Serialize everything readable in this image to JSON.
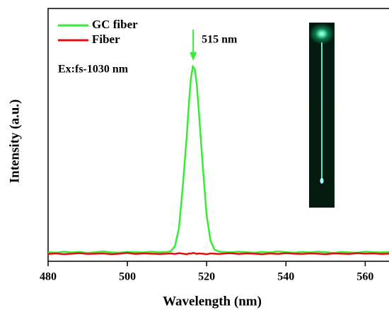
{
  "chart_data": {
    "type": "line",
    "x_label": "Wavelength (nm)",
    "y_label": "Intensity (a.u.)",
    "annotations": [
      "515 nm",
      "Ex:fs-1030 nm"
    ],
    "xlim": [
      480,
      566
    ],
    "xticks": [
      480,
      500,
      520,
      540,
      560
    ],
    "ylim": [
      0,
      100
    ],
    "legend": "top-left",
    "x": [
      480,
      482,
      484,
      486,
      488,
      490,
      492,
      494,
      496,
      498,
      500,
      502,
      504,
      506,
      508,
      510,
      511,
      512,
      513,
      514,
      515,
      515.5,
      516,
      516.5,
      517,
      517.5,
      518,
      519,
      520,
      521,
      522,
      523,
      524,
      526,
      528,
      530,
      532,
      534,
      536,
      538,
      540,
      542,
      544,
      546,
      548,
      550,
      552,
      554,
      556,
      558,
      560,
      562,
      564,
      566
    ],
    "series": [
      {
        "name": "GC fiber",
        "color": "#33ee33",
        "values": [
          3.6,
          3.4,
          3.8,
          3.5,
          3.7,
          3.3,
          3.6,
          3.9,
          3.5,
          3.4,
          3.7,
          3.6,
          3.5,
          3.8,
          3.6,
          3.7,
          4.0,
          6,
          13,
          30,
          50,
          62,
          72,
          77,
          76,
          70,
          60,
          38,
          18,
          8,
          4.6,
          3.9,
          3.7,
          3.5,
          3.8,
          3.6,
          3.4,
          3.7,
          3.5,
          3.9,
          3.6,
          3.4,
          3.7,
          3.5,
          3.8,
          3.6,
          3.3,
          3.7,
          3.5,
          3.4,
          3.8,
          3.6,
          3.5,
          3.7
        ]
      },
      {
        "name": "Fiber",
        "color": "#dd1111",
        "values": [
          2.9,
          3.1,
          2.8,
          3.0,
          3.2,
          2.9,
          3.0,
          3.1,
          2.8,
          3.0,
          3.3,
          2.9,
          3.1,
          3.0,
          2.9,
          3.0,
          3.1,
          2.9,
          3.2,
          3.0,
          2.8,
          3.1,
          3.0,
          3.3,
          3.2,
          2.9,
          3.1,
          3.0,
          2.8,
          3.1,
          3.0,
          2.9,
          3.0,
          3.2,
          2.9,
          3.1,
          3.0,
          2.8,
          3.1,
          2.9,
          3.2,
          3.0,
          2.9,
          3.1,
          3.0,
          2.8,
          3.1,
          3.0,
          2.9,
          3.2,
          3.0,
          3.1,
          2.9,
          3.0
        ]
      }
    ]
  }
}
